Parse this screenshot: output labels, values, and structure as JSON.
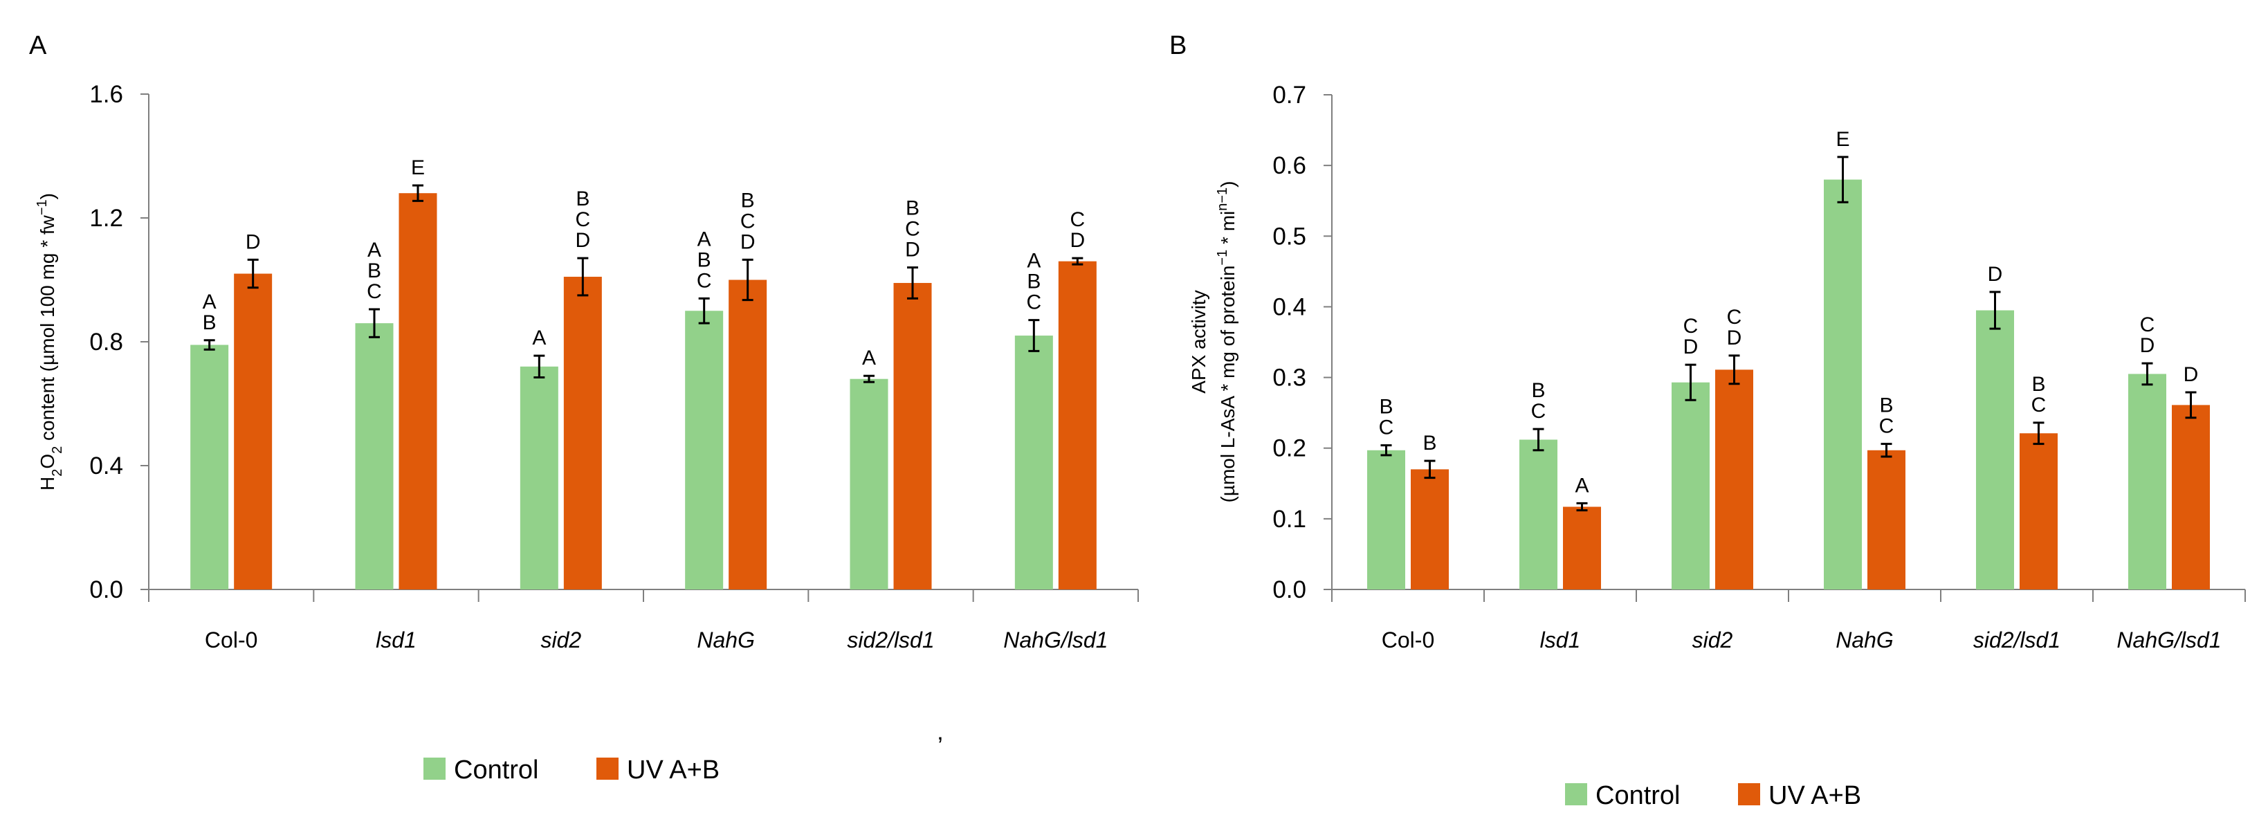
{
  "stray_mark": "’",
  "colors": {
    "control": "#92d18a",
    "uv": "#e05a0a",
    "axis": "#7f7f7f",
    "error": "#000000"
  },
  "chart_data": [
    {
      "panel": "A",
      "type": "bar",
      "ylabel_parts": [
        "H",
        "2",
        "O",
        "2",
        " content (µmol 100 mg * fw",
        "−1",
        ")"
      ],
      "ylim": [
        0,
        1.6
      ],
      "yticks": [
        "0.0",
        "0.4",
        "0.8",
        "1.2",
        "1.6"
      ],
      "ytick_values": [
        0,
        0.4,
        0.8,
        1.2,
        1.6
      ],
      "grid": false,
      "legend_position": "bottom-center",
      "categories": [
        "Col-0",
        "lsd1",
        "sid2",
        "NahG",
        "sid2/lsd1",
        "NahG/lsd1"
      ],
      "italic_categories": [
        false,
        true,
        true,
        true,
        true,
        true
      ],
      "series": [
        {
          "name": "Control",
          "values": [
            0.79,
            0.86,
            0.72,
            0.9,
            0.68,
            0.82
          ],
          "errors": [
            0.015,
            0.045,
            0.035,
            0.04,
            0.01,
            0.05
          ],
          "letters": [
            [
              "A",
              "B"
            ],
            [
              "A",
              "B",
              "C"
            ],
            [
              "A"
            ],
            [
              "A",
              "B",
              "C"
            ],
            [
              "A"
            ],
            [
              "A",
              "B",
              "C"
            ]
          ]
        },
        {
          "name": "UV A+B",
          "values": [
            1.02,
            1.28,
            1.01,
            1.0,
            0.99,
            1.06
          ],
          "errors": [
            0.045,
            0.025,
            0.06,
            0.065,
            0.05,
            0.01
          ],
          "letters": [
            [
              "D"
            ],
            [
              "E"
            ],
            [
              "B",
              "C",
              "D"
            ],
            [
              "B",
              "C",
              "D"
            ],
            [
              "B",
              "C",
              "D"
            ],
            [
              "C",
              "D"
            ]
          ]
        }
      ]
    },
    {
      "panel": "B",
      "type": "bar",
      "ylabel_line1": "APX activity",
      "ylabel_parts": [
        "(µmol L-AsA * mg of protein",
        "−1",
        " * mi",
        "n−1",
        ")"
      ],
      "ylim": [
        0,
        0.7
      ],
      "yticks": [
        "0.0",
        "0.1",
        "0.2",
        "0.3",
        "0.4",
        "0.5",
        "0.6",
        "0.7"
      ],
      "ytick_values": [
        0,
        0.1,
        0.2,
        0.3,
        0.4,
        0.5,
        0.6,
        0.7
      ],
      "grid": false,
      "legend_position": "bottom-center",
      "categories": [
        "Col-0",
        "lsd1",
        "sid2",
        "NahG",
        "sid2/lsd1",
        "NahG/lsd1"
      ],
      "italic_categories": [
        false,
        true,
        true,
        true,
        true,
        true
      ],
      "series": [
        {
          "name": "Control",
          "values": [
            0.197,
            0.212,
            0.293,
            0.58,
            0.395,
            0.305
          ],
          "errors": [
            0.007,
            0.015,
            0.025,
            0.032,
            0.026,
            0.015
          ],
          "letters": [
            [
              "B",
              "C"
            ],
            [
              "B",
              "C"
            ],
            [
              "C",
              "D"
            ],
            [
              "E"
            ],
            [
              "D"
            ],
            [
              "C",
              "D"
            ]
          ]
        },
        {
          "name": "UV A+B",
          "values": [
            0.17,
            0.117,
            0.311,
            0.197,
            0.221,
            0.261
          ],
          "errors": [
            0.012,
            0.005,
            0.02,
            0.009,
            0.015,
            0.018
          ],
          "letters": [
            [
              "B"
            ],
            [
              "A"
            ],
            [
              "C",
              "D"
            ],
            [
              "B",
              "C"
            ],
            [
              "B",
              "C"
            ],
            [
              "D"
            ]
          ]
        }
      ]
    }
  ]
}
